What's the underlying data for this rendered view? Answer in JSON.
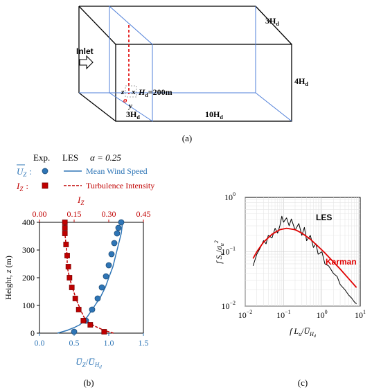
{
  "panel_a": {
    "inlet": "Inlet",
    "label_width": "3H",
    "label_width_sub": "d",
    "label_height": "4H",
    "label_height_sub": "d",
    "label_front_width": "3H",
    "label_front_width_sub": "d",
    "label_length": "10H",
    "label_length_sub": "d",
    "axis_z": "z",
    "axis_x": "x",
    "axis_y": "y",
    "origin": "o",
    "hd_label": "H",
    "hd_sub": "d",
    "hd_value": "=200m",
    "caption": "(a)"
  },
  "panel_b": {
    "legend": {
      "exp": "Exp.",
      "les": "LES",
      "alpha": "α = 0.25",
      "uz_symbol": "U",
      "uz_sub": "Z",
      "colon1": ":",
      "mean_label": "Mean Wind Speed",
      "iz_symbol": "I",
      "iz_sub": "Z",
      "colon2": ":",
      "turb_label": "Turbulence Intensity"
    },
    "caption": "(b)"
  },
  "panel_c": {
    "caption": "(c)"
  },
  "chart_data": [
    {
      "type": "line",
      "ylabel": "Height, z (m)",
      "xlabel_bottom": "U̅z/U̅Hd",
      "xlabel_top": "Iz",
      "ylim": [
        0,
        400
      ],
      "yticks": [
        "0",
        "100",
        "200",
        "300",
        "400"
      ],
      "xlim_bottom": [
        0.0,
        1.5
      ],
      "xticks_bottom": [
        "0.0",
        "0.5",
        "1.0",
        "1.5"
      ],
      "xlim_top": [
        0.0,
        0.45
      ],
      "xticks_top": [
        "0.00",
        "0.15",
        "0.30",
        "0.45"
      ],
      "colors": {
        "mean": "#2e75b6",
        "turb": "#c00000"
      },
      "series": [
        {
          "name": "Mean Wind Speed",
          "axis": "bottom",
          "style": "solid",
          "x": [
            0.26,
            0.4,
            0.5,
            0.58,
            0.65,
            0.72,
            0.8,
            0.88,
            0.95,
            1.0,
            1.06,
            1.1,
            1.14,
            1.18,
            1.2
          ],
          "y": [
            0,
            10,
            20,
            30,
            45,
            70,
            100,
            130,
            165,
            200,
            240,
            280,
            320,
            360,
            400
          ]
        },
        {
          "name": "Mean Wind Speed Exp.",
          "axis": "bottom",
          "marker": "circle",
          "x": [
            0.5,
            0.67,
            0.76,
            0.84,
            0.9,
            0.96,
            1.0,
            1.04,
            1.08,
            1.12,
            1.14,
            1.18
          ],
          "y": [
            5,
            45,
            85,
            125,
            165,
            205,
            245,
            285,
            325,
            360,
            380,
            400
          ]
        },
        {
          "name": "Turbulence Intensity",
          "axis": "top",
          "style": "dashed",
          "x": [
            0.32,
            0.28,
            0.24,
            0.2,
            0.18,
            0.16,
            0.14,
            0.13,
            0.12,
            0.12,
            0.115,
            0.11,
            0.11
          ],
          "y": [
            0,
            10,
            25,
            45,
            80,
            120,
            170,
            200,
            240,
            280,
            320,
            360,
            400
          ]
        },
        {
          "name": "Turbulence Intensity Exp.",
          "axis": "top",
          "marker": "square",
          "x": [
            0.28,
            0.22,
            0.19,
            0.17,
            0.155,
            0.14,
            0.13,
            0.125,
            0.12,
            0.115,
            0.11,
            0.11,
            0.11
          ],
          "y": [
            5,
            30,
            45,
            85,
            125,
            165,
            200,
            240,
            280,
            320,
            360,
            380,
            400
          ]
        }
      ]
    },
    {
      "type": "line",
      "scale": "log-log",
      "xlabel": "fLu/U̅Hd",
      "ylabel": "fSu/σu²",
      "xlim": [
        0.01,
        10
      ],
      "ylim": [
        0.01,
        1
      ],
      "xticks": [
        "10",
        "10",
        "10",
        "10",
        "10"
      ],
      "xtick_exp": [
        "−2",
        "−1",
        "0",
        "1",
        ""
      ],
      "yticks": [
        "10",
        "10",
        "10"
      ],
      "ytick_exp": [
        "−2",
        "−1",
        "0"
      ],
      "grid": true,
      "colors": {
        "les": "#000000",
        "karman": "#e00000"
      },
      "series": [
        {
          "name": "LES",
          "x": [
            0.016,
            0.02,
            0.025,
            0.03,
            0.035,
            0.04,
            0.05,
            0.06,
            0.07,
            0.08,
            0.09,
            0.1,
            0.12,
            0.14,
            0.16,
            0.2,
            0.25,
            0.3,
            0.35,
            0.4,
            0.5,
            0.6,
            0.7,
            0.8,
            1.0,
            1.2,
            1.5,
            2.0,
            2.5,
            3.0,
            4.0,
            5.0,
            6.0,
            7.0,
            8.0
          ],
          "y": [
            0.055,
            0.09,
            0.12,
            0.16,
            0.14,
            0.2,
            0.18,
            0.27,
            0.22,
            0.3,
            0.45,
            0.35,
            0.42,
            0.3,
            0.4,
            0.25,
            0.33,
            0.2,
            0.28,
            0.16,
            0.2,
            0.12,
            0.14,
            0.09,
            0.1,
            0.06,
            0.055,
            0.04,
            0.035,
            0.025,
            0.02,
            0.016,
            0.014,
            0.012,
            0.011
          ]
        },
        {
          "name": "Karman",
          "x": [
            0.016,
            0.02,
            0.03,
            0.05,
            0.08,
            0.12,
            0.2,
            0.3,
            0.5,
            0.8,
            1.2,
            2.0,
            3.0,
            5.0,
            8.0
          ],
          "y": [
            0.075,
            0.1,
            0.15,
            0.21,
            0.255,
            0.27,
            0.255,
            0.22,
            0.17,
            0.125,
            0.095,
            0.065,
            0.048,
            0.032,
            0.022
          ]
        }
      ],
      "labels": {
        "les": "LES",
        "karman": "Karman"
      }
    }
  ]
}
